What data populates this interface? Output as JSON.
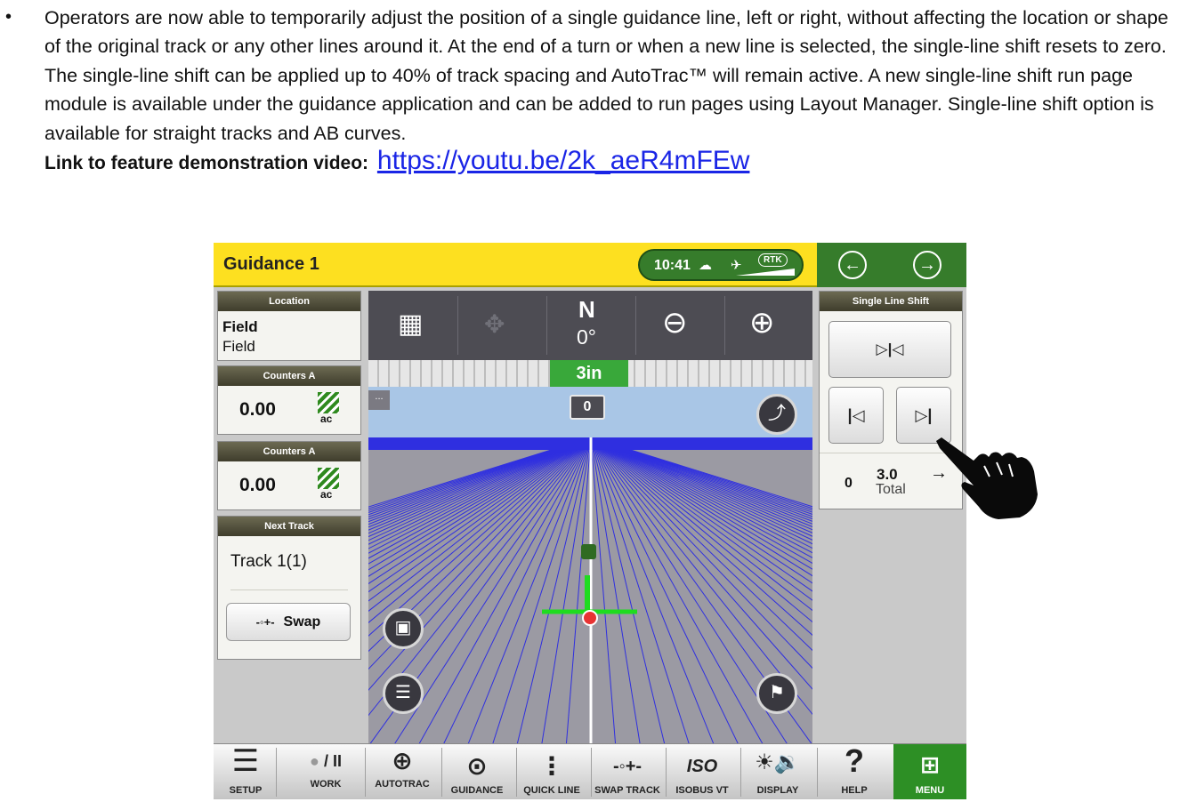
{
  "document": {
    "bullet": "•",
    "paragraph": "Operators are now able to temporarily adjust the position of a single guidance line, left or right, without affecting the location or shape of the original track or any other lines around it. At the end of a turn or when a new line is selected, the single-line shift resets to zero. The single-line shift can be applied up to 40% of track spacing and AutoTrac™ will remain active. A new single-line shift run page module is available under the guidance application and can be added to run pages using Layout Manager. Single-line shift option is available for straight tracks and AB curves.",
    "link_label": "Link to feature demonstration video:",
    "link_url": "https://youtu.be/2k_aeR4mFEw"
  },
  "header": {
    "title": "Guidance 1",
    "time": "10:41",
    "rtk": "RTK",
    "back_icon": "arrow-left-circle-icon",
    "forward_icon": "arrow-right-circle-icon"
  },
  "location": {
    "header": "Location",
    "title": "Field",
    "subtitle": "Field"
  },
  "counters": [
    {
      "header": "Counters A",
      "value": "0.00",
      "unit": "ac"
    },
    {
      "header": "Counters A",
      "value": "0.00",
      "unit": "ac"
    }
  ],
  "next_track": {
    "header": "Next Track",
    "track": "Track 1(1)",
    "swap_label": "Swap"
  },
  "map": {
    "heading_label": "N",
    "heading_deg": "0°",
    "offset": "3in",
    "track_number": "0",
    "dots": "...",
    "colors": {
      "sky": "#a9c6e6",
      "horizon": "#2f2fe0",
      "ground": "#9b9aa3",
      "guidance": "#1fdc1f"
    }
  },
  "single_line_shift": {
    "header": "Single Line Shift",
    "center_glyph": "▷|◁",
    "left_glyph": "|◁",
    "right_glyph": "▷|",
    "current": "0",
    "shift_value": "3.0",
    "total_label": "Total",
    "direction_arrow": "→"
  },
  "bottom_bar": {
    "setup": "SETUP",
    "work": "WORK",
    "work_glyph": "/ II",
    "autotrac": "AUTOTRAC",
    "guidance": "GUIDANCE",
    "quick_line": "QUICK LINE",
    "swap_track": "SWAP TRACK",
    "isobus_vt": "ISOBUS VT",
    "iso_glyph": "ISO",
    "display": "DISPLAY",
    "help": "HELP",
    "help_glyph": "?",
    "menu": "MENU"
  },
  "brand_colors": {
    "jd_green": "#367c2b",
    "jd_yellow": "#fde020",
    "link": "#1a25e6"
  }
}
